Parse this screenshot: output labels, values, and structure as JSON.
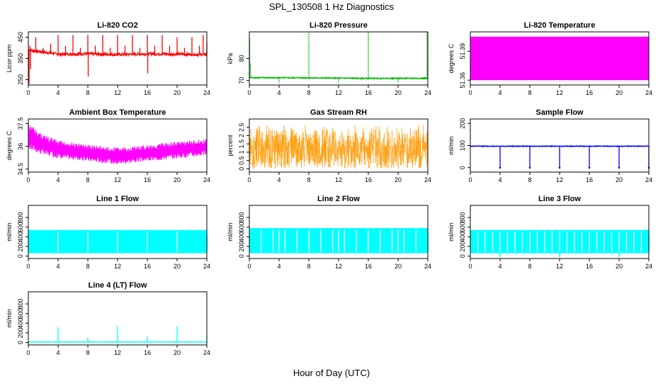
{
  "main_title": "SPL_130508  1 Hz Diagnostics",
  "xlabel": "Hour of Day (UTC)",
  "chart_data": [
    {
      "type": "line",
      "title": "Li-820 CO2",
      "ylabel": "Licor ppm",
      "color": "#ff0000",
      "xlim": [
        0,
        24
      ],
      "xticks": [
        0,
        4,
        8,
        12,
        16,
        20,
        24
      ],
      "ylim": [
        225,
        475
      ],
      "yticks": [
        250,
        350,
        450
      ],
      "baseline": [
        [
          0,
          390
        ],
        [
          4,
          370
        ],
        [
          8,
          372
        ],
        [
          12,
          368
        ],
        [
          16,
          372
        ],
        [
          20,
          370
        ],
        [
          24,
          368
        ]
      ],
      "band": 12,
      "spikes": [
        [
          0.1,
          230
        ],
        [
          0.2,
          410
        ],
        [
          0.3,
          300
        ],
        [
          1.0,
          450
        ],
        [
          2.0,
          400
        ],
        [
          3.0,
          420
        ],
        [
          4.0,
          460
        ],
        [
          5.0,
          410
        ],
        [
          6.0,
          460
        ],
        [
          7.0,
          400
        ],
        [
          8.0,
          460
        ],
        [
          8.05,
          265
        ],
        [
          9.0,
          410
        ],
        [
          10.0,
          460
        ],
        [
          11.0,
          400
        ],
        [
          12.0,
          460
        ],
        [
          13.0,
          410
        ],
        [
          14.0,
          460
        ],
        [
          15.0,
          400
        ],
        [
          16.0,
          460
        ],
        [
          16.05,
          280
        ],
        [
          17.0,
          410
        ],
        [
          18.0,
          460
        ],
        [
          19.0,
          410
        ],
        [
          20.0,
          450
        ],
        [
          21.0,
          400
        ],
        [
          22.0,
          450
        ],
        [
          23.0,
          410
        ],
        [
          23.5,
          460
        ],
        [
          24.0,
          430
        ]
      ]
    },
    {
      "type": "line",
      "title": "Li-820 Pressure",
      "ylabel": "kPa",
      "color": "#00bb00",
      "xlim": [
        0,
        24
      ],
      "xticks": [
        0,
        4,
        8,
        12,
        16,
        20,
        24
      ],
      "ylim": [
        68,
        92
      ],
      "yticks": [
        70,
        80
      ],
      "baseline": [
        [
          0,
          71.3
        ],
        [
          8,
          71.2
        ],
        [
          16,
          71.0
        ],
        [
          24,
          71.0
        ]
      ],
      "band": 0.5,
      "spikes": [
        [
          0.05,
          89
        ],
        [
          0.15,
          78
        ],
        [
          4.0,
          69
        ],
        [
          8.0,
          92
        ],
        [
          12.0,
          69
        ],
        [
          16.0,
          92
        ],
        [
          20.0,
          69
        ],
        [
          23.9,
          92
        ]
      ]
    },
    {
      "type": "area",
      "title": "Li-820 Temperature",
      "ylabel": "degrees C",
      "color": "#ff00ff",
      "xlim": [
        0,
        24
      ],
      "xticks": [
        0,
        4,
        8,
        12,
        16,
        20,
        24
      ],
      "ylim": [
        51.355,
        51.41
      ],
      "yticks": [
        51.36,
        51.39
      ],
      "ymin_fill": 51.36,
      "ymax_fill": 51.405
    },
    {
      "type": "line",
      "title": "Ambient Box Temperature",
      "ylabel": "degrees C",
      "color": "#ff00ff",
      "xlim": [
        0,
        24
      ],
      "xticks": [
        0,
        4,
        8,
        12,
        16,
        20,
        24
      ],
      "ylim": [
        34.3,
        37.8
      ],
      "yticks": [
        34.5,
        36.0,
        37.5
      ],
      "upper": [
        [
          0,
          37.5
        ],
        [
          2,
          36.8
        ],
        [
          4,
          36.4
        ],
        [
          8,
          36.1
        ],
        [
          12,
          35.9
        ],
        [
          16,
          36.1
        ],
        [
          20,
          36.3
        ],
        [
          24,
          36.5
        ]
      ],
      "lower": [
        [
          0,
          35.8
        ],
        [
          2,
          35.4
        ],
        [
          4,
          35.2
        ],
        [
          8,
          35.0
        ],
        [
          12,
          34.8
        ],
        [
          16,
          35.0
        ],
        [
          20,
          35.2
        ],
        [
          24,
          35.4
        ]
      ]
    },
    {
      "type": "line",
      "title": "Gas Stream RH",
      "ylabel": "percent",
      "color": "#ff9900",
      "xlim": [
        0,
        24
      ],
      "xticks": [
        0,
        4,
        8,
        12,
        16,
        20,
        24
      ],
      "ylim": [
        -0.2,
        3.0
      ],
      "yticks": [
        0.0,
        0.5,
        1.0,
        1.5,
        2.0,
        2.5
      ],
      "upper_level": 2.7,
      "lower_level": 0.0
    },
    {
      "type": "line",
      "title": "Sample Flow",
      "ylabel": "ml/min",
      "color": "#0000ff",
      "xlim": [
        0,
        24
      ],
      "xticks": [
        0,
        4,
        8,
        12,
        16,
        20,
        24
      ],
      "ylim": [
        -20,
        220
      ],
      "yticks": [
        0,
        100,
        200
      ],
      "baseline": [
        [
          0,
          97
        ],
        [
          24,
          97
        ]
      ],
      "band": 3,
      "dips": [
        4,
        8,
        12,
        16,
        20,
        24
      ],
      "dip_value": 0
    },
    {
      "type": "area",
      "title": "Line 1 Flow",
      "ylabel": "ml/min",
      "color": "#00ffff",
      "xlim": [
        0,
        24
      ],
      "xticks": [
        0,
        4,
        8,
        12,
        16,
        20,
        24
      ],
      "ylim": [
        -50,
        1050
      ],
      "yticks": [
        0,
        200,
        400,
        600,
        800
      ],
      "ymin_fill": 60,
      "ymax_fill": 540,
      "gaps": [
        4,
        8,
        12,
        16,
        20
      ]
    },
    {
      "type": "area",
      "title": "Line 2 Flow",
      "ylabel": "ml/min",
      "color": "#00ffff",
      "xlim": [
        0,
        24
      ],
      "xticks": [
        0,
        4,
        8,
        12,
        16,
        20,
        24
      ],
      "ylim": [
        -50,
        1050
      ],
      "yticks": [
        0,
        200,
        400,
        600,
        800
      ],
      "ymin_fill": 60,
      "ymax_fill": 580,
      "gaps": [
        1.6,
        3.2,
        4,
        4.8,
        6.4,
        8,
        9.6,
        11.2,
        12,
        12.8,
        14.4,
        16,
        17.6,
        19.2,
        20,
        20.8,
        22.4
      ]
    },
    {
      "type": "area",
      "title": "Line 3 Flow",
      "ylabel": "ml/min",
      "color": "#00ffff",
      "xlim": [
        0,
        24
      ],
      "xticks": [
        0,
        4,
        8,
        12,
        16,
        20,
        24
      ],
      "ylim": [
        -50,
        1050
      ],
      "yticks": [
        0,
        200,
        400,
        600,
        800
      ],
      "ymin_fill": 60,
      "ymax_fill": 540,
      "gaps": [
        1.0,
        2.0,
        3.0,
        4,
        5.0,
        6.0,
        7.0,
        8,
        9.0,
        10.0,
        11.0,
        12,
        13.0,
        14.0,
        15.0,
        16,
        17.0,
        18.0,
        19.0,
        20,
        21.0,
        22.0,
        23.0
      ],
      "dips": [
        4,
        12,
        20
      ],
      "dip_value": -20
    },
    {
      "type": "line",
      "title": "Line 4 (LT) Flow",
      "ylabel": "ml/min",
      "color": "#00ffff",
      "xlim": [
        0,
        24
      ],
      "xticks": [
        0,
        4,
        8,
        12,
        16,
        20,
        24
      ],
      "ylim": [
        -50,
        1050
      ],
      "yticks": [
        0,
        200,
        400,
        600,
        800
      ],
      "baseline": [
        [
          0,
          10
        ],
        [
          24,
          10
        ]
      ],
      "band": 8,
      "spikes": [
        [
          4,
          320
        ],
        [
          8,
          110
        ],
        [
          12,
          340
        ],
        [
          16,
          120
        ],
        [
          20,
          330
        ],
        [
          24,
          110
        ]
      ]
    }
  ]
}
